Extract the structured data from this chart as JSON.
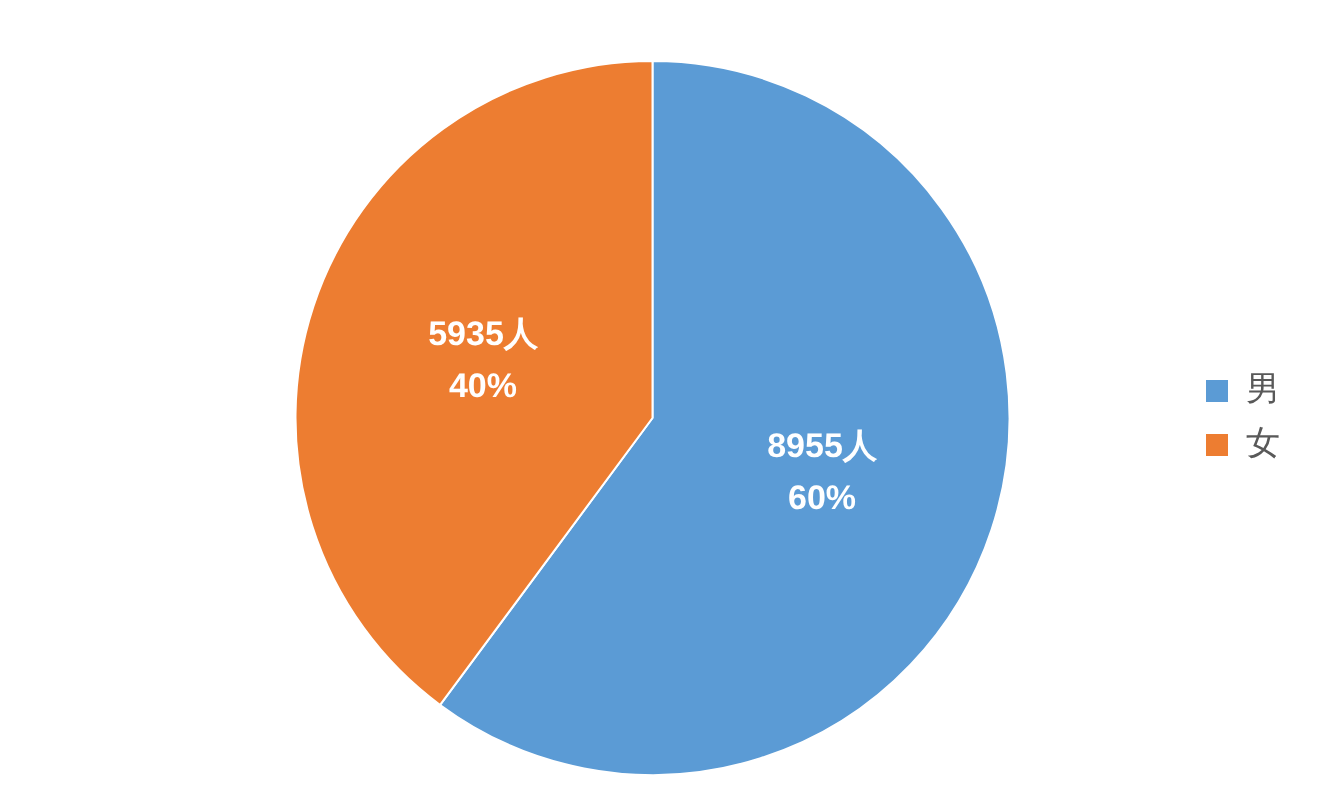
{
  "chart_data": {
    "type": "pie",
    "categories": [
      "男",
      "女"
    ],
    "values": [
      8955,
      5935
    ],
    "colors": [
      "#5b9bd5",
      "#ed7d31"
    ],
    "value_labels": [
      "8955人\n60%",
      "5935人\n40%"
    ],
    "legend": "right"
  }
}
